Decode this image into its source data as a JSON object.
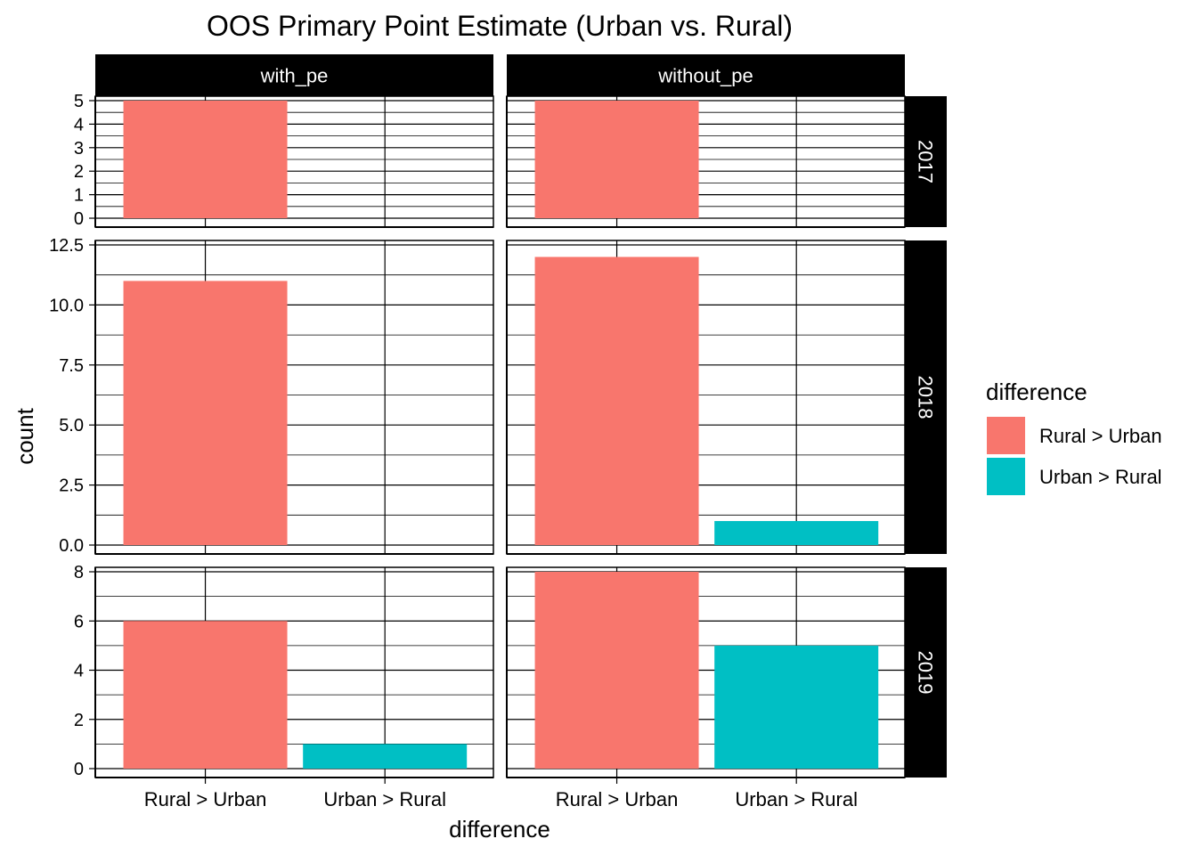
{
  "chart_data": {
    "type": "bar",
    "title": "OOS Primary Point Estimate (Urban vs. Rural)",
    "xlabel": "difference",
    "ylabel": "count",
    "categories": [
      "Rural >  Urban",
      "Urban > Rural"
    ],
    "columns": [
      "with_pe",
      "without_pe"
    ],
    "rows": [
      {
        "label": "2017",
        "ylim": [
          0,
          5
        ],
        "yticks": [
          0,
          1,
          2,
          3,
          4,
          5
        ],
        "ytick_labels": [
          "0",
          "1",
          "2",
          "3",
          "4",
          "5"
        ],
        "panels": [
          {
            "values": [
              5,
              0
            ]
          },
          {
            "values": [
              5,
              0
            ]
          }
        ]
      },
      {
        "label": "2018",
        "ylim": [
          0,
          12.5
        ],
        "yticks": [
          0,
          2.5,
          5,
          7.5,
          10,
          12.5
        ],
        "ytick_labels": [
          "0.0",
          "2.5",
          "5.0",
          "7.5",
          "10.0",
          "12.5"
        ],
        "panels": [
          {
            "values": [
              11,
              0
            ]
          },
          {
            "values": [
              12,
              1
            ]
          }
        ]
      },
      {
        "label": "2019",
        "ylim": [
          0,
          8
        ],
        "yticks": [
          0,
          2,
          4,
          6,
          8
        ],
        "ytick_labels": [
          "0",
          "2",
          "4",
          "6",
          "8"
        ],
        "panels": [
          {
            "values": [
              6,
              1
            ]
          },
          {
            "values": [
              8,
              5
            ]
          }
        ]
      }
    ],
    "legend": {
      "title": "difference",
      "position": "right",
      "items": [
        {
          "label": "Rural >  Urban",
          "color": "#F8766D"
        },
        {
          "label": "Urban > Rural",
          "color": "#00BFC4"
        }
      ]
    },
    "grid": true,
    "strip_color": "#000000",
    "strip_text_color": "#ffffff"
  }
}
